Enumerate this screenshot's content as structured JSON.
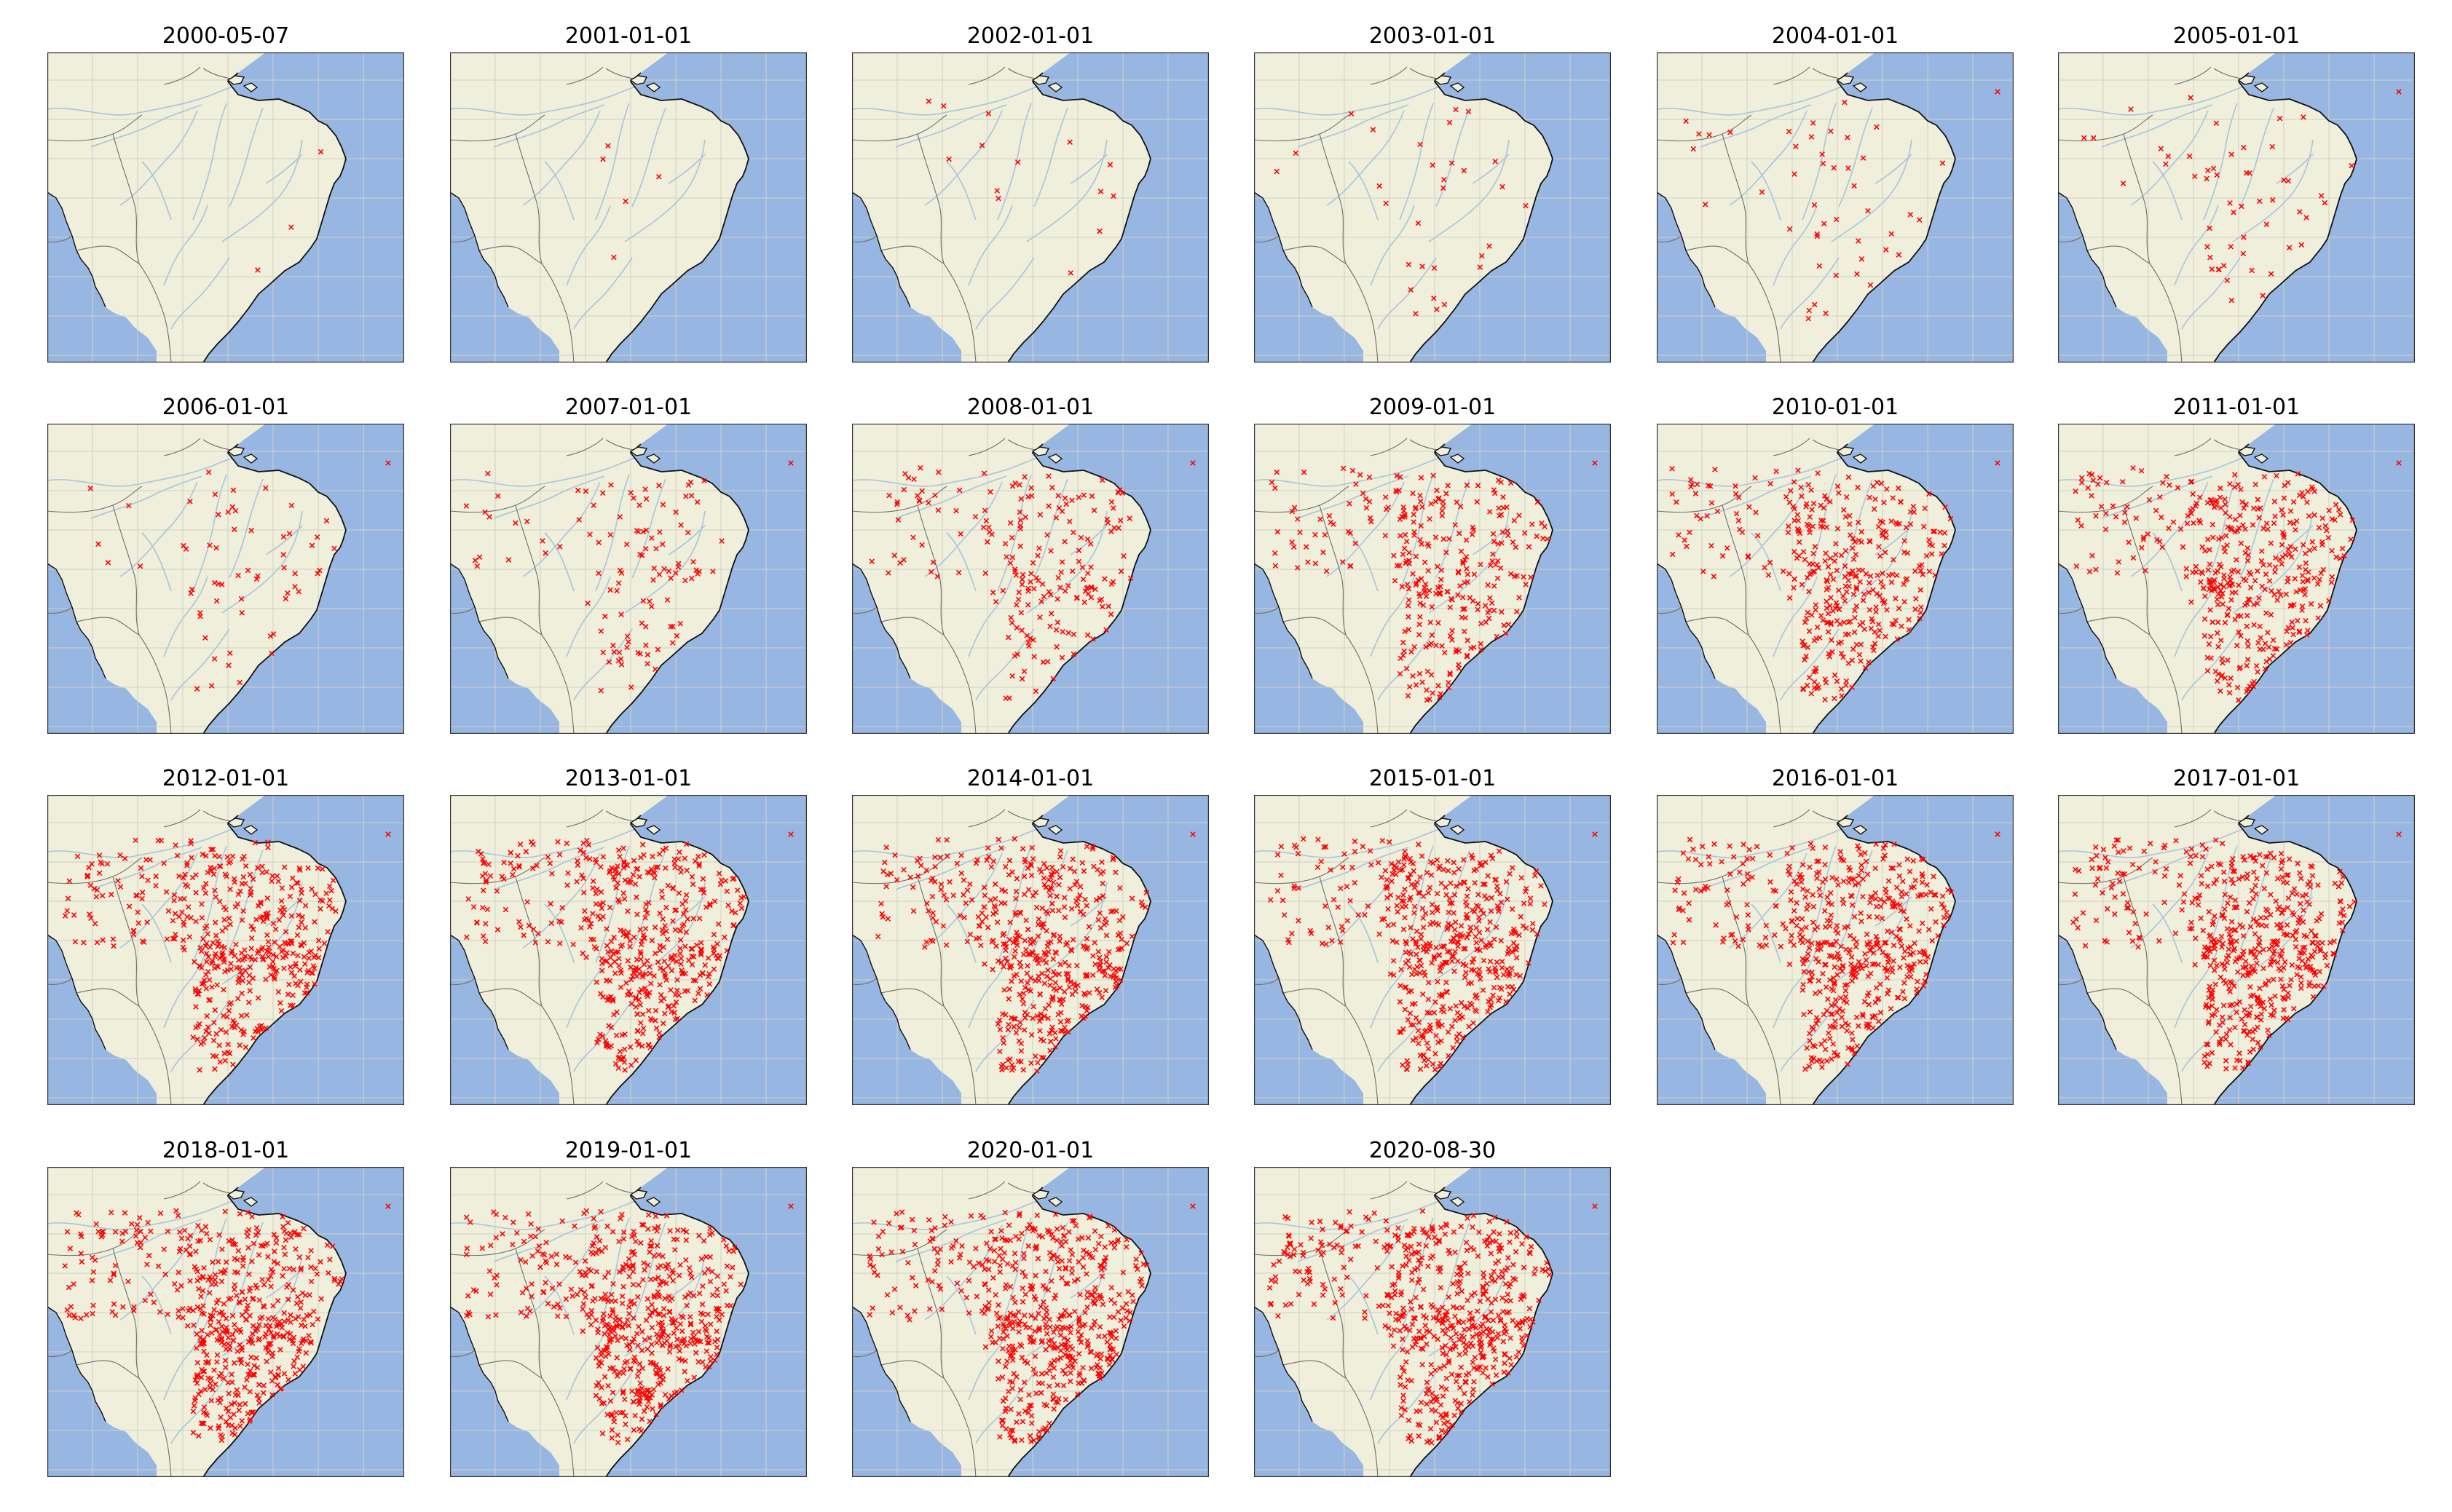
{
  "figure": {
    "panels": [
      {
        "title": "2000-05-07",
        "station_count": 3,
        "offshore_station": false
      },
      {
        "title": "2001-01-01",
        "station_count": 5,
        "offshore_station": false
      },
      {
        "title": "2002-01-01",
        "station_count": 14,
        "offshore_station": false
      },
      {
        "title": "2003-01-01",
        "station_count": 30,
        "offshore_station": false
      },
      {
        "title": "2004-01-01",
        "station_count": 45,
        "offshore_station": true
      },
      {
        "title": "2005-01-01",
        "station_count": 52,
        "offshore_station": true
      },
      {
        "title": "2006-01-01",
        "station_count": 60,
        "offshore_station": true
      },
      {
        "title": "2007-01-01",
        "station_count": 110,
        "offshore_station": true
      },
      {
        "title": "2008-01-01",
        "station_count": 200,
        "offshore_station": true
      },
      {
        "title": "2009-01-01",
        "station_count": 300,
        "offshore_station": true
      },
      {
        "title": "2010-01-01",
        "station_count": 370,
        "offshore_station": true
      },
      {
        "title": "2011-01-01",
        "station_count": 400,
        "offshore_station": true
      },
      {
        "title": "2012-01-01",
        "station_count": 460,
        "offshore_station": true
      },
      {
        "title": "2013-01-01",
        "station_count": 480,
        "offshore_station": true
      },
      {
        "title": "2014-01-01",
        "station_count": 490,
        "offshore_station": true
      },
      {
        "title": "2015-01-01",
        "station_count": 500,
        "offshore_station": true
      },
      {
        "title": "2016-01-01",
        "station_count": 510,
        "offshore_station": true
      },
      {
        "title": "2017-01-01",
        "station_count": 520,
        "offshore_station": true
      },
      {
        "title": "2018-01-01",
        "station_count": 530,
        "offshore_station": true
      },
      {
        "title": "2019-01-01",
        "station_count": 540,
        "offshore_station": true
      },
      {
        "title": "2020-01-01",
        "station_count": 550,
        "offshore_station": true
      },
      {
        "title": "2020-08-30",
        "station_count": 555,
        "offshore_station": true
      }
    ]
  },
  "style": {
    "ocean_color": "#97b6e1",
    "land_color": "#efefdb",
    "river_color": "#a9c4dc",
    "border_color": "#6e6e6e",
    "coast_color": "#111111",
    "gridline_color": "#d2d2c6",
    "marker_color": "#ff0000",
    "marker_symbol": "x",
    "frame_color": "#333333"
  }
}
